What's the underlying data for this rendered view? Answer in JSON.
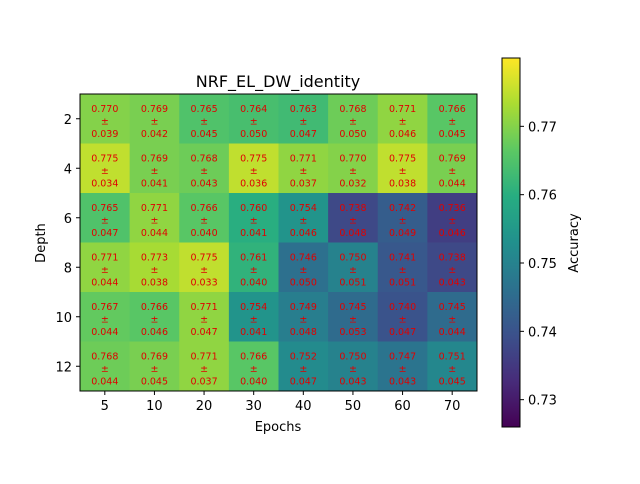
{
  "chart_data": {
    "type": "heatmap",
    "title": "NRF_EL_DW_identity",
    "xlabel": "Epochs",
    "ylabel": "Depth",
    "x_categories": [
      "5",
      "10",
      "20",
      "30",
      "40",
      "50",
      "60",
      "70"
    ],
    "y_categories": [
      "2",
      "4",
      "6",
      "8",
      "10",
      "12"
    ],
    "values": [
      [
        0.77,
        0.769,
        0.765,
        0.764,
        0.763,
        0.768,
        0.771,
        0.766
      ],
      [
        0.775,
        0.769,
        0.768,
        0.775,
        0.771,
        0.77,
        0.775,
        0.769
      ],
      [
        0.765,
        0.771,
        0.766,
        0.76,
        0.754,
        0.738,
        0.742,
        0.736
      ],
      [
        0.771,
        0.773,
        0.775,
        0.761,
        0.746,
        0.75,
        0.741,
        0.738
      ],
      [
        0.767,
        0.766,
        0.771,
        0.754,
        0.749,
        0.745,
        0.74,
        0.745
      ],
      [
        0.768,
        0.769,
        0.771,
        0.766,
        0.752,
        0.75,
        0.747,
        0.751
      ]
    ],
    "errors": [
      [
        0.039,
        0.042,
        0.045,
        0.05,
        0.047,
        0.05,
        0.046,
        0.045
      ],
      [
        0.034,
        0.041,
        0.043,
        0.036,
        0.037,
        0.032,
        0.038,
        0.044
      ],
      [
        0.047,
        0.044,
        0.04,
        0.041,
        0.046,
        0.048,
        0.049,
        0.046
      ],
      [
        0.044,
        0.038,
        0.033,
        0.04,
        0.05,
        0.051,
        0.051,
        0.043
      ],
      [
        0.044,
        0.046,
        0.047,
        0.041,
        0.048,
        0.053,
        0.047,
        0.044
      ],
      [
        0.044,
        0.045,
        0.037,
        0.04,
        0.047,
        0.043,
        0.043,
        0.045
      ]
    ],
    "pm_symbol": "±",
    "colorbar": {
      "label": "Accuracy",
      "vmin": 0.726,
      "vmax": 0.78,
      "ticks": [
        "0.73",
        "0.74",
        "0.75",
        "0.76",
        "0.77"
      ],
      "tick_values": [
        0.73,
        0.74,
        0.75,
        0.76,
        0.77
      ],
      "colormap": "viridis"
    },
    "annotation_color": "#e00000",
    "grid": false
  }
}
